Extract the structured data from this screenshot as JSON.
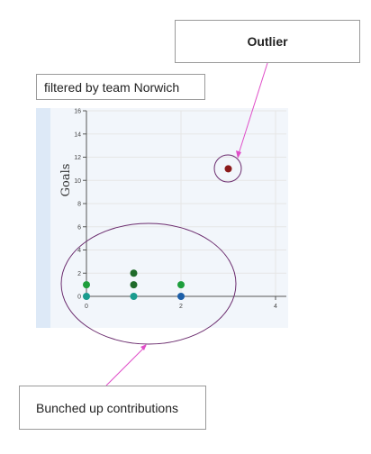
{
  "annotations": {
    "filter_label": "filtered by team Norwich",
    "outlier_label": "Outlier",
    "bunched_label": "Bunched up contributions"
  },
  "colors": {
    "annotation_line": "#e04ec8",
    "ellipse_stroke": "#6b2c6e",
    "panel_bg": "#f2f6fb",
    "grid": "#e6e6e6"
  },
  "chart_data": {
    "type": "scatter",
    "title": "",
    "xlabel": "",
    "ylabel": "Goals",
    "xlim": [
      0,
      4
    ],
    "ylim": [
      0,
      16
    ],
    "x_ticks": [
      0,
      2,
      4
    ],
    "y_ticks": [
      0,
      2,
      4,
      6,
      8,
      10,
      12,
      14,
      16
    ],
    "grid": true,
    "points": [
      {
        "x": 0,
        "y": 1,
        "color": "#1e9e3c"
      },
      {
        "x": 0,
        "y": 0,
        "color": "#1a9c8f"
      },
      {
        "x": 1,
        "y": 2,
        "color": "#1f6b2a"
      },
      {
        "x": 1,
        "y": 1,
        "color": "#1f6b2a"
      },
      {
        "x": 1,
        "y": 0,
        "color": "#1a9c8f"
      },
      {
        "x": 2,
        "y": 1,
        "color": "#1e9e3c"
      },
      {
        "x": 2,
        "y": 0,
        "color": "#1c5ea8"
      },
      {
        "x": 3,
        "y": 11,
        "color": "#8b1a1a"
      }
    ]
  }
}
